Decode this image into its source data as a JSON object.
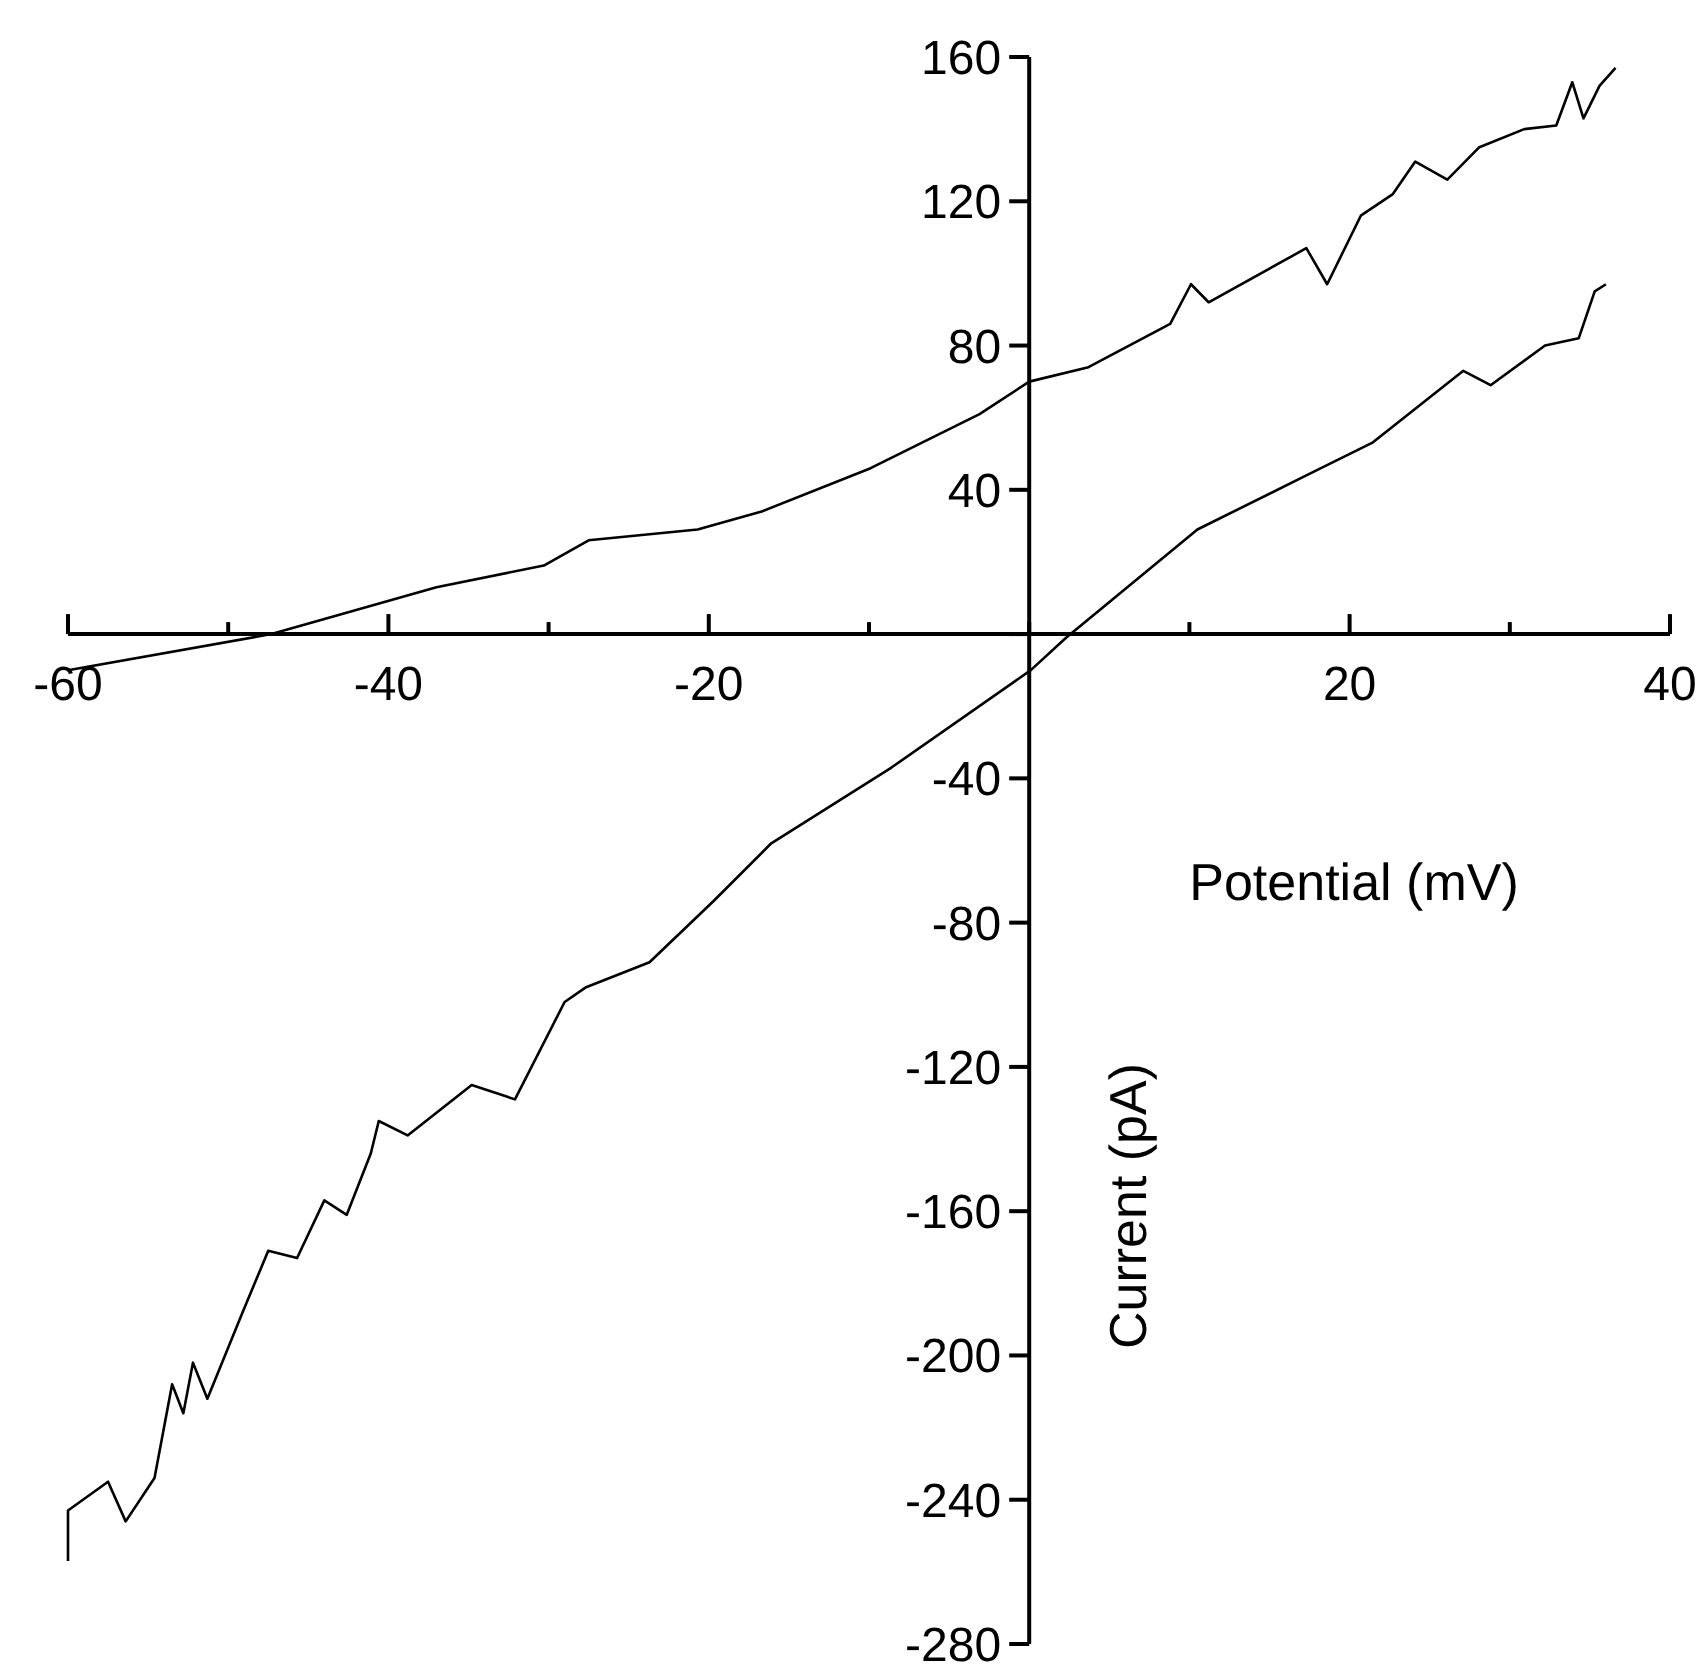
{
  "chart_data": {
    "type": "line",
    "xlabel": "Potential (mV)",
    "ylabel": "Current (pA)",
    "xlim": [
      -60,
      40
    ],
    "ylim": [
      -280,
      160
    ],
    "xticks": [
      -60,
      {
        "value": -50,
        "label": null
      },
      -40,
      {
        "value": -30,
        "label": null
      },
      -20,
      {
        "value": -10,
        "label": null
      },
      {
        "value": 0,
        "label": null
      },
      {
        "value": 10,
        "label": null
      },
      20,
      {
        "value": 30,
        "label": null
      },
      40
    ],
    "yticks": [
      -280,
      -240,
      -200,
      -160,
      -120,
      -80,
      -40,
      {
        "value": 0,
        "label": null
      },
      40,
      80,
      120,
      160
    ],
    "grid": false,
    "marker": "none",
    "line_style": "solid",
    "series": [
      {
        "color": "#000000",
        "x": [
          -60,
          -47.3,
          -37,
          -30.3,
          -27.5,
          -20.7,
          -16.7,
          -9.9,
          -3.1,
          0,
          3.7,
          8.8,
          10.1,
          11.2,
          17.3,
          18.6,
          20.7,
          22.7,
          24.1,
          26.1,
          28.1,
          30.9,
          32.9,
          33.9,
          34.6,
          35.6,
          36.6
        ],
        "values": [
          -10,
          0,
          13,
          19,
          26,
          29,
          34,
          46,
          61,
          70,
          74,
          86,
          97,
          92,
          107,
          97,
          116,
          122,
          131,
          126,
          135,
          140,
          141,
          153,
          143,
          152,
          157
        ]
      },
      {
        "color": "#000000",
        "x": [
          -60,
          -60,
          -57.5,
          -56.4,
          -54.6,
          -53.5,
          -52.8,
          -52.2,
          -51.3,
          -49.1,
          -47.5,
          -45.7,
          -44,
          -42.6,
          -41.1,
          -40.6,
          -38.8,
          -34.8,
          -32.1,
          -29,
          -27.7,
          -23.7,
          -19.7,
          -16.1,
          -8.6,
          0.1,
          2.3,
          10.5,
          17.3,
          21.4,
          27.1,
          28.8,
          32.2,
          34.3,
          35.3,
          36
        ],
        "values": [
          -257,
          -243,
          -235,
          -246,
          -234,
          -208,
          -216,
          -202,
          -212,
          -188,
          -171,
          -173,
          -157,
          -161,
          -144,
          -135,
          -139,
          -125,
          -129,
          -102,
          -98,
          -91,
          -74,
          -58,
          -37,
          -10,
          -1,
          29,
          44,
          53,
          73,
          69,
          80,
          82,
          95,
          97
        ]
      }
    ]
  }
}
